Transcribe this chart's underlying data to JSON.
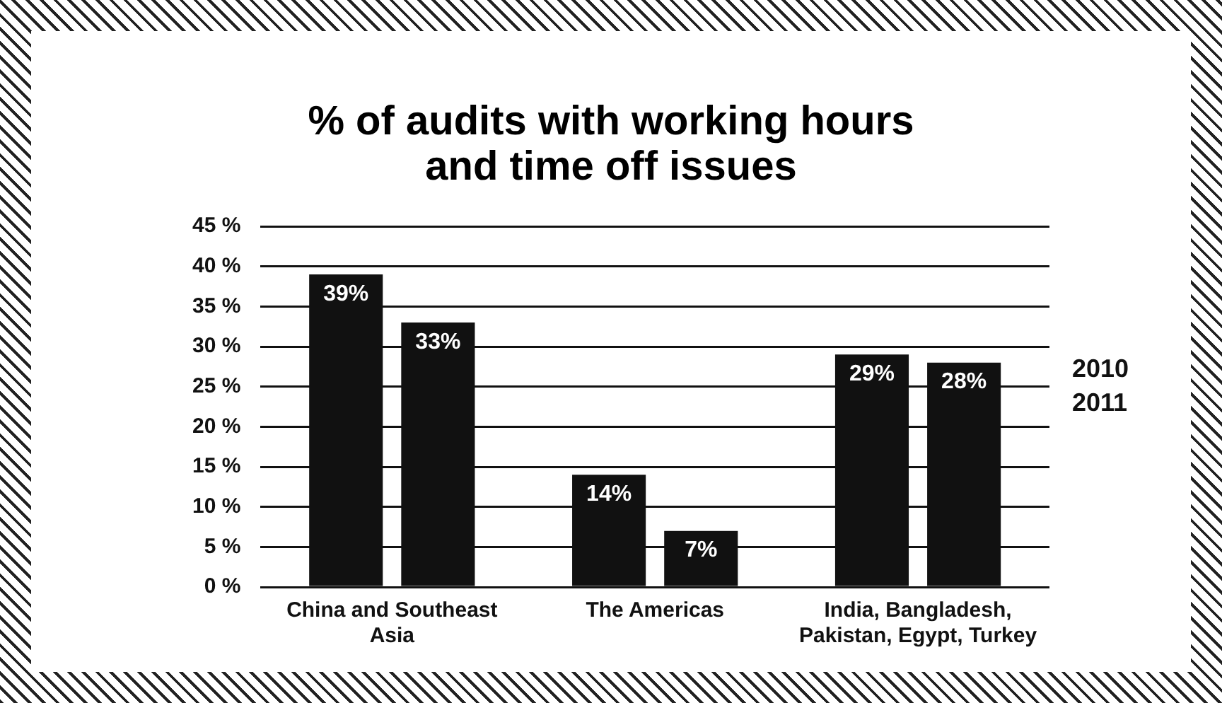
{
  "chart_data": {
    "type": "bar",
    "title": "% of audits with working hours and time off issues",
    "categories": [
      "China and Southeast Asia",
      "The Americas",
      "India, Bangladesh, Pakistan, Egypt, Turkey"
    ],
    "series": [
      {
        "name": "2010",
        "color": "#111111",
        "values": [
          39,
          14,
          29
        ],
        "value_labels": [
          "39%",
          "14%",
          "29%"
        ]
      },
      {
        "name": "2011",
        "color": "#111111",
        "values": [
          33,
          7,
          28
        ],
        "value_labels": [
          "33%",
          "7%",
          "28%"
        ]
      }
    ],
    "ylim": [
      0,
      45
    ],
    "yticks": [
      {
        "value": 0,
        "label": "0 %"
      },
      {
        "value": 5,
        "label": "5 %"
      },
      {
        "value": 10,
        "label": "10 %"
      },
      {
        "value": 15,
        "label": "15 %"
      },
      {
        "value": 20,
        "label": "20 %"
      },
      {
        "value": 25,
        "label": "25 %"
      },
      {
        "value": 30,
        "label": "30 %"
      },
      {
        "value": 35,
        "label": "35 %"
      },
      {
        "value": 40,
        "label": "40 %"
      },
      {
        "value": 45,
        "label": "45 %"
      }
    ],
    "grid": "y",
    "legend": "right"
  }
}
